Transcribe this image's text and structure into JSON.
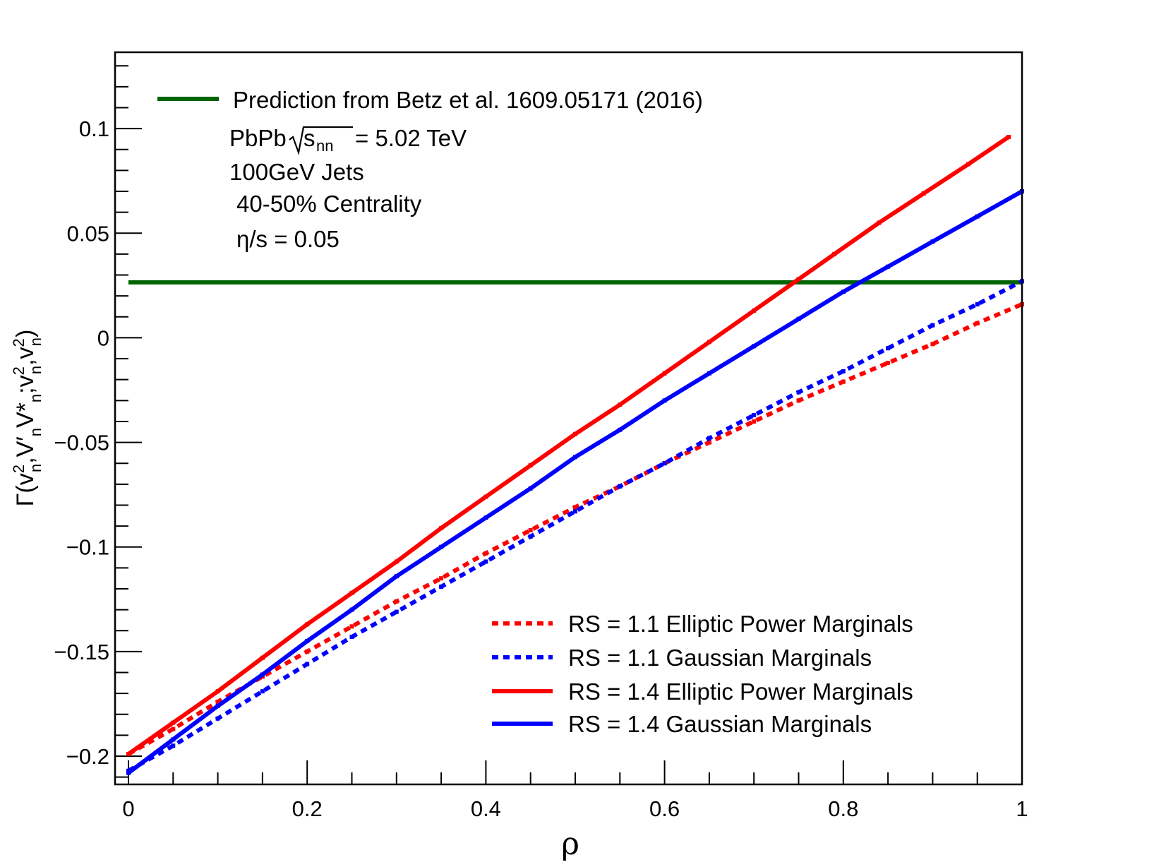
{
  "chart_data": {
    "type": "line",
    "xlabel": "ρ",
    "ylabel": {
      "gamma": "Γ",
      "open": "(v",
      "v1_sup": "2",
      "v1_sub": "n",
      "comma1": ",",
      "v2": "V′",
      "v2_sub": "n",
      "v3": "V*",
      "v3_sub": "n",
      "comma2": ";v",
      "v4_sup": "2",
      "v4_sub": "n",
      "comma3": ",v",
      "v5_sup": "2",
      "v5_sub": "n",
      "close": ")"
    },
    "xlim": [
      -0.015,
      1.0
    ],
    "ylim": [
      -0.2135,
      0.1365
    ],
    "x_ticks": [
      0,
      0.2,
      0.4,
      0.6,
      0.8,
      1
    ],
    "x_tick_labels": [
      "0",
      "0.2",
      "0.4",
      "0.6",
      "0.8",
      "1"
    ],
    "y_ticks": [
      -0.2,
      -0.15,
      -0.1,
      -0.05,
      0,
      0.05,
      0.1
    ],
    "y_tick_labels": [
      "−0.2",
      "−0.15",
      "−0.1",
      "−0.05",
      "0",
      "0.05",
      "0.1"
    ],
    "annotations": {
      "system": "PbPb",
      "energy_sub": "nn",
      "energy_value": " = 5.02 TeV",
      "jets": "100GeV Jets",
      "centrality": "40-50% Centrality",
      "viscosity": "η/s = 0.05"
    },
    "reference_line": {
      "name": "Prediction from Betz et al. 1609.05171 (2016)",
      "y": 0.0265,
      "x_range": [
        0,
        1
      ],
      "color": "#006400"
    },
    "series": [
      {
        "name": "RS = 1.1 Elliptic Power Marginals",
        "color": "#ff0000",
        "style": "dashed",
        "x": [
          0,
          0.05,
          0.1,
          0.15,
          0.2,
          0.25,
          0.3,
          0.35,
          0.4,
          0.45,
          0.5,
          0.55,
          0.6,
          0.65,
          0.7,
          0.75,
          0.8,
          0.85,
          0.9,
          0.95,
          1.0
        ],
        "values": [
          -0.199,
          -0.187,
          -0.174,
          -0.162,
          -0.15,
          -0.138,
          -0.126,
          -0.115,
          -0.103,
          -0.092,
          -0.081,
          -0.071,
          -0.06,
          -0.05,
          -0.04,
          -0.03,
          -0.021,
          -0.012,
          -0.003,
          0.007,
          0.016
        ]
      },
      {
        "name": "RS = 1.1 Gaussian Marginals",
        "color": "#0000ff",
        "style": "dashed",
        "x": [
          0,
          0.05,
          0.1,
          0.15,
          0.2,
          0.25,
          0.3,
          0.35,
          0.4,
          0.45,
          0.5,
          0.55,
          0.6,
          0.65,
          0.7,
          0.75,
          0.8,
          0.85,
          0.9,
          0.95,
          1.0
        ],
        "values": [
          -0.207,
          -0.195,
          -0.182,
          -0.169,
          -0.156,
          -0.143,
          -0.131,
          -0.119,
          -0.107,
          -0.095,
          -0.083,
          -0.071,
          -0.06,
          -0.048,
          -0.037,
          -0.026,
          -0.016,
          -0.005,
          0.006,
          0.016,
          0.027
        ]
      },
      {
        "name": "RS = 1.4 Elliptic Power Marginals",
        "color": "#ff0000",
        "style": "solid",
        "x": [
          0,
          0.05,
          0.1,
          0.15,
          0.2,
          0.25,
          0.3,
          0.35,
          0.4,
          0.45,
          0.5,
          0.55,
          0.6,
          0.65,
          0.7,
          0.75,
          0.79,
          0.84,
          0.89,
          0.94,
          0.985
        ],
        "values": [
          -0.199,
          -0.184,
          -0.169,
          -0.153,
          -0.137,
          -0.122,
          -0.107,
          -0.091,
          -0.076,
          -0.061,
          -0.046,
          -0.032,
          -0.017,
          -0.002,
          0.013,
          0.028,
          0.04,
          0.055,
          0.069,
          0.083,
          0.096
        ]
      },
      {
        "name": "RS = 1.4 Gaussian Marginals",
        "color": "#0000ff",
        "style": "solid",
        "x": [
          0,
          0.05,
          0.1,
          0.15,
          0.2,
          0.25,
          0.3,
          0.35,
          0.4,
          0.45,
          0.5,
          0.55,
          0.6,
          0.65,
          0.7,
          0.75,
          0.8,
          0.85,
          0.9,
          0.95,
          1.0
        ],
        "values": [
          -0.208,
          -0.192,
          -0.176,
          -0.161,
          -0.145,
          -0.13,
          -0.114,
          -0.1,
          -0.086,
          -0.072,
          -0.057,
          -0.044,
          -0.03,
          -0.017,
          -0.004,
          0.009,
          0.022,
          0.034,
          0.046,
          0.058,
          0.07
        ]
      }
    ]
  }
}
